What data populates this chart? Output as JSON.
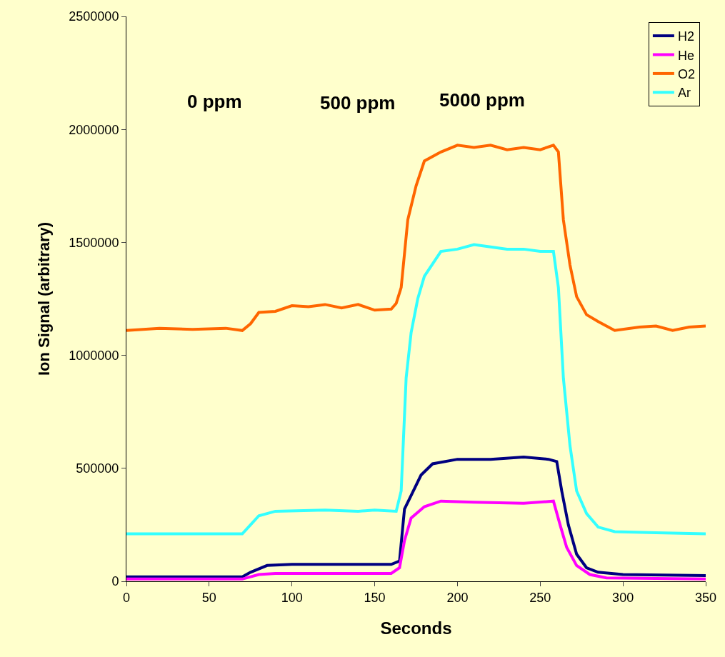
{
  "chart_data": {
    "type": "line",
    "xlabel": "Seconds",
    "ylabel": "Ion Signal (arbitrary)",
    "xlim": [
      0,
      350
    ],
    "xticks": [
      0,
      50,
      100,
      150,
      200,
      250,
      300,
      350
    ],
    "ylim": [
      0,
      2500000
    ],
    "yticks": [
      0,
      500000,
      1000000,
      1500000,
      2000000,
      2500000
    ],
    "grid": false,
    "legend": "top right",
    "marker": "none",
    "line_style": "solid",
    "annotations": [
      "0 ppm",
      "500 ppm",
      "5000 ppm"
    ],
    "series": [
      {
        "name": "H2",
        "color": "#000080",
        "x": [
          0,
          70,
          75,
          85,
          100,
          160,
          165,
          168,
          172,
          178,
          185,
          200,
          220,
          240,
          255,
          260,
          263,
          267,
          272,
          278,
          285,
          300,
          350
        ],
        "values": [
          20000,
          20000,
          40000,
          70000,
          75000,
          75000,
          90000,
          320000,
          380000,
          470000,
          520000,
          540000,
          540000,
          550000,
          540000,
          530000,
          400000,
          250000,
          120000,
          60000,
          40000,
          30000,
          25000
        ]
      },
      {
        "name": "He",
        "color": "#ff00ff",
        "x": [
          0,
          70,
          80,
          90,
          160,
          165,
          168,
          172,
          180,
          190,
          210,
          240,
          258,
          262,
          266,
          272,
          280,
          290,
          350
        ],
        "values": [
          10000,
          10000,
          30000,
          35000,
          35000,
          60000,
          180000,
          280000,
          330000,
          355000,
          350000,
          345000,
          355000,
          250000,
          150000,
          70000,
          30000,
          15000,
          10000
        ]
      },
      {
        "name": "O2",
        "color": "#ff6600",
        "x": [
          0,
          20,
          40,
          60,
          70,
          75,
          80,
          90,
          100,
          110,
          120,
          130,
          140,
          150,
          160,
          163,
          166,
          170,
          175,
          180,
          190,
          200,
          210,
          220,
          230,
          240,
          250,
          258,
          261,
          264,
          268,
          272,
          278,
          285,
          295,
          310,
          320,
          330,
          340,
          350
        ],
        "values": [
          1110000,
          1120000,
          1115000,
          1120000,
          1110000,
          1140000,
          1190000,
          1195000,
          1220000,
          1215000,
          1225000,
          1210000,
          1225000,
          1200000,
          1205000,
          1230000,
          1300000,
          1600000,
          1750000,
          1860000,
          1900000,
          1930000,
          1920000,
          1930000,
          1910000,
          1920000,
          1910000,
          1930000,
          1900000,
          1600000,
          1400000,
          1260000,
          1180000,
          1150000,
          1110000,
          1125000,
          1130000,
          1110000,
          1125000,
          1130000
        ]
      },
      {
        "name": "Ar",
        "color": "#33ffff",
        "x": [
          0,
          40,
          70,
          75,
          80,
          90,
          120,
          140,
          150,
          163,
          166,
          169,
          172,
          176,
          180,
          190,
          200,
          210,
          220,
          230,
          240,
          250,
          258,
          261,
          264,
          268,
          272,
          278,
          285,
          295,
          320,
          350
        ],
        "values": [
          210000,
          210000,
          210000,
          250000,
          290000,
          310000,
          315000,
          310000,
          315000,
          310000,
          400000,
          900000,
          1100000,
          1250000,
          1350000,
          1460000,
          1470000,
          1490000,
          1480000,
          1470000,
          1470000,
          1460000,
          1460000,
          1300000,
          900000,
          600000,
          400000,
          300000,
          240000,
          220000,
          215000,
          210000
        ]
      }
    ]
  }
}
